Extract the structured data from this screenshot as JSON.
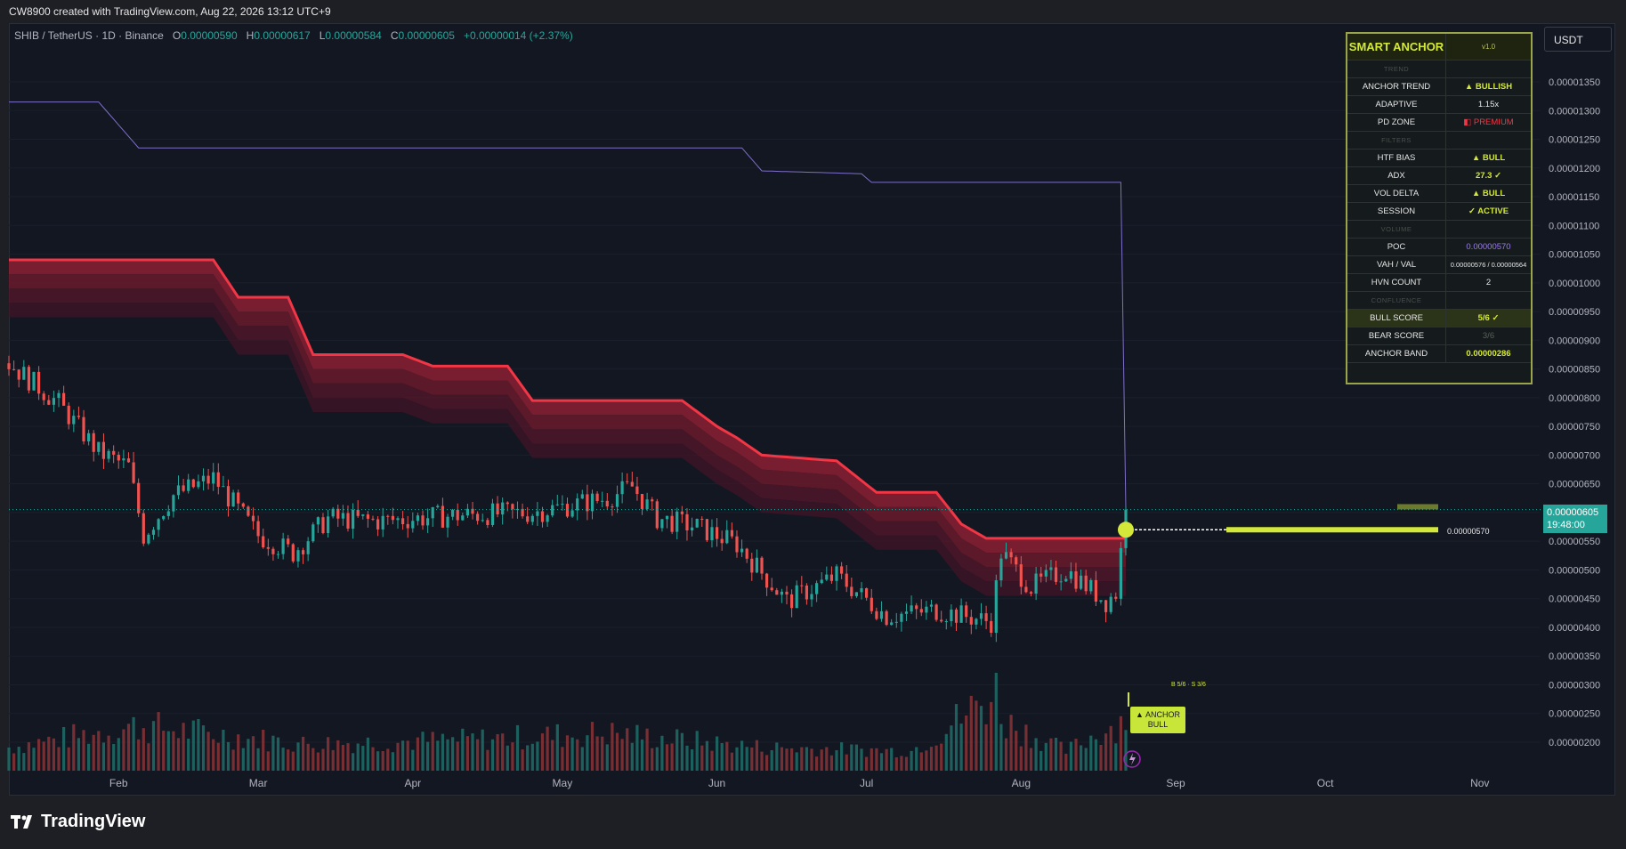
{
  "header": {
    "title": "CW8900 created with TradingView.com, Aug 22, 2026 13:12 UTC+9"
  },
  "legend": {
    "symbol": "SHIB / TetherUS · 1D · Binance",
    "o_label": "O",
    "o": "0.00000590",
    "h_label": "H",
    "h": "0.00000617",
    "l_label": "L",
    "l": "0.00000584",
    "c_label": "C",
    "c": "0.00000605",
    "change": "+0.00000014 (+2.37%)"
  },
  "currency_button": "USDT",
  "brand": "TradingView",
  "price_tag": {
    "price": "0.00000605",
    "countdown": "19:48:00"
  },
  "poc_label": "0.00000570",
  "signal": {
    "label_line1": "▲ ANCHOR",
    "label_line2": "BULL",
    "scores": "B 5/6 · S 3/6"
  },
  "indicator_table": {
    "title": "SMART ANCHOR",
    "version": "v1.0",
    "rows": [
      {
        "label": "TREND",
        "value": "",
        "type": "section"
      },
      {
        "label": "ANCHOR TREND",
        "value": "▲ BULLISH",
        "type": "bull"
      },
      {
        "label": "ADAPTIVE",
        "value": "1.15x",
        "type": "normal"
      },
      {
        "label": "PD ZONE",
        "value": "◧ PREMIUM",
        "type": "premium"
      },
      {
        "label": "FILTERS",
        "value": "",
        "type": "section"
      },
      {
        "label": "HTF BIAS",
        "value": "▲ BULL",
        "type": "bull"
      },
      {
        "label": "ADX",
        "value": "27.3 ✓",
        "type": "bull"
      },
      {
        "label": "VOL DELTA",
        "value": "▲ BULL",
        "type": "bull"
      },
      {
        "label": "SESSION",
        "value": "✓ ACTIVE",
        "type": "bull"
      },
      {
        "label": "VOLUME",
        "value": "",
        "type": "section"
      },
      {
        "label": "POC",
        "value": "0.00000570",
        "type": "poc"
      },
      {
        "label": "VAH / VAL",
        "value": "0.00000576 / 0.00000564",
        "type": "small"
      },
      {
        "label": "HVN COUNT",
        "value": "2",
        "type": "normal"
      },
      {
        "label": "CONFLUENCE",
        "value": "",
        "type": "section"
      },
      {
        "label": "BULL SCORE",
        "value": "5/6 ✓",
        "type": "bull-hl"
      },
      {
        "label": "BEAR SCORE",
        "value": "3/6",
        "type": "dim"
      },
      {
        "label": "ANCHOR BAND",
        "value": "0.00000286",
        "type": "bull"
      }
    ]
  },
  "colors": {
    "up": "#26a69a",
    "down": "#ef5350",
    "band": "#f23645",
    "upper_line": "#7e6fc9",
    "poc": "#d4e83a",
    "background": "#131722"
  },
  "chart_data": {
    "type": "candlestick",
    "title": "SHIB / TetherUS · 1D · Binance",
    "x_ticks": [
      "Feb",
      "Mar",
      "Apr",
      "May",
      "Jun",
      "Jul",
      "Aug",
      "Sep",
      "Oct",
      "Nov"
    ],
    "y_ticks": [
      "0.00001350",
      "0.00001300",
      "0.00001250",
      "0.00001200",
      "0.00001150",
      "0.00001100",
      "0.00001050",
      "0.00001000",
      "0.00000950",
      "0.00000900",
      "0.00000850",
      "0.00000800",
      "0.00000750",
      "0.00000700",
      "0.00000650",
      "0.00000600",
      "0.00000550",
      "0.00000500",
      "0.00000450",
      "0.00000400",
      "0.00000350",
      "0.00000300",
      "0.00000250",
      "0.00000200"
    ],
    "ylim": [
      1.7e-06,
      1.41e-05
    ],
    "close_keypoints": [
      [
        "2026-01-10",
        8.6e-06
      ],
      [
        "2026-01-20",
        7.9e-06
      ],
      [
        "2026-01-28",
        7.05e-06
      ],
      [
        "2026-02-03",
        6.8e-06
      ],
      [
        "2026-02-06",
        5.6e-06
      ],
      [
        "2026-02-12",
        6.3e-06
      ],
      [
        "2026-02-20",
        6.6e-06
      ],
      [
        "2026-03-01",
        5.6e-06
      ],
      [
        "2026-03-08",
        5.3e-06
      ],
      [
        "2026-03-15",
        5.9e-06
      ],
      [
        "2026-03-25",
        5.85e-06
      ],
      [
        "2026-04-10",
        5.95e-06
      ],
      [
        "2026-04-25",
        6e-06
      ],
      [
        "2026-05-10",
        6.25e-06
      ],
      [
        "2026-05-15",
        6.45e-06
      ],
      [
        "2026-05-20",
        5.9e-06
      ],
      [
        "2026-05-28",
        5.75e-06
      ],
      [
        "2026-06-05",
        5.45e-06
      ],
      [
        "2026-06-15",
        4.45e-06
      ],
      [
        "2026-06-25",
        4.9e-06
      ],
      [
        "2026-07-05",
        4.2e-06
      ],
      [
        "2026-07-15",
        4.3e-06
      ],
      [
        "2026-07-26",
        4.1e-06
      ],
      [
        "2026-07-28",
        5.3e-06
      ],
      [
        "2026-08-03",
        4.7e-06
      ],
      [
        "2026-08-10",
        5e-06
      ],
      [
        "2026-08-18",
        4.45e-06
      ],
      [
        "2026-08-20",
        4.6e-06
      ],
      [
        "2026-08-22",
        6.05e-06
      ]
    ],
    "band_top_keypoints": [
      [
        "2026-01-10",
        1.04e-05
      ],
      [
        "2026-02-20",
        1.04e-05
      ],
      [
        "2026-02-25",
        9.75e-06
      ],
      [
        "2026-03-07",
        9.75e-06
      ],
      [
        "2026-03-12",
        8.75e-06
      ],
      [
        "2026-03-30",
        8.75e-06
      ],
      [
        "2026-04-05",
        8.55e-06
      ],
      [
        "2026-04-20",
        8.55e-06
      ],
      [
        "2026-04-25",
        7.95e-06
      ],
      [
        "2026-05-25",
        7.95e-06
      ],
      [
        "2026-06-01",
        7.5e-06
      ],
      [
        "2026-06-05",
        7.3e-06
      ],
      [
        "2026-06-10",
        7e-06
      ],
      [
        "2026-06-25",
        6.9e-06
      ],
      [
        "2026-07-03",
        6.35e-06
      ],
      [
        "2026-07-15",
        6.35e-06
      ],
      [
        "2026-07-20",
        5.8e-06
      ],
      [
        "2026-07-25",
        5.55e-06
      ],
      [
        "2026-08-22",
        5.55e-06
      ]
    ],
    "upper_line_keypoints": [
      [
        "2026-01-10",
        1.315e-05
      ],
      [
        "2026-01-28",
        1.315e-05
      ],
      [
        "2026-02-05",
        1.235e-05
      ],
      [
        "2026-06-06",
        1.235e-05
      ],
      [
        "2026-06-10",
        1.195e-05
      ],
      [
        "2026-06-30",
        1.19e-05
      ],
      [
        "2026-07-02",
        1.175e-05
      ],
      [
        "2026-08-21",
        1.175e-05
      ],
      [
        "2026-08-22",
        6.05e-06
      ]
    ],
    "volume_relative_keypoints": [
      [
        "2026-01-10",
        0.25
      ],
      [
        "2026-02-05",
        0.55
      ],
      [
        "2026-03-10",
        0.3
      ],
      [
        "2026-04-10",
        0.35
      ],
      [
        "2026-05-10",
        0.45
      ],
      [
        "2026-06-10",
        0.25
      ],
      [
        "2026-07-10",
        0.2
      ],
      [
        "2026-07-27",
        1.0
      ],
      [
        "2026-07-29",
        0.6
      ],
      [
        "2026-08-10",
        0.2
      ],
      [
        "2026-08-22",
        0.65
      ]
    ]
  }
}
